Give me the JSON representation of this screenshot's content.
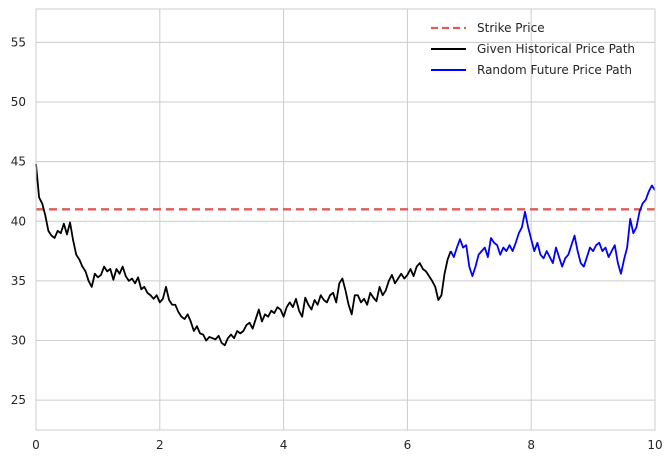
{
  "chart_data": {
    "type": "line",
    "title": "",
    "xlabel": "",
    "ylabel": "",
    "xlim": [
      0,
      10
    ],
    "ylim": [
      22.5,
      57.8
    ],
    "xticks": [
      0,
      2,
      4,
      6,
      8,
      10
    ],
    "xtick_labels": [
      "0",
      "2",
      "4",
      "6",
      "8",
      "10"
    ],
    "yticks": [
      25,
      30,
      35,
      40,
      45,
      50,
      55
    ],
    "ytick_labels": [
      "25",
      "30",
      "35",
      "40",
      "45",
      "50",
      "55"
    ],
    "grid": true,
    "legend_position": "top-right",
    "series": [
      {
        "name": "Strike Price",
        "style": "dashed",
        "color": "#e05a56",
        "x": [
          0,
          10
        ],
        "y": [
          41,
          41
        ]
      },
      {
        "name": "Given Historical Price Path",
        "style": "solid",
        "color": "#000000",
        "x": [
          0,
          0.05,
          0.1,
          0.15,
          0.2,
          0.25,
          0.3,
          0.35,
          0.4,
          0.45,
          0.5,
          0.55,
          0.6,
          0.65,
          0.7,
          0.75,
          0.8,
          0.85,
          0.9,
          0.95,
          1.0,
          1.05,
          1.1,
          1.15,
          1.2,
          1.25,
          1.3,
          1.35,
          1.4,
          1.45,
          1.5,
          1.55,
          1.6,
          1.65,
          1.7,
          1.75,
          1.8,
          1.85,
          1.9,
          1.95,
          2.0,
          2.05,
          2.1,
          2.15,
          2.2,
          2.25,
          2.3,
          2.35,
          2.4,
          2.45,
          2.5,
          2.55,
          2.6,
          2.65,
          2.7,
          2.75,
          2.8,
          2.85,
          2.9,
          2.95,
          3.0,
          3.05,
          3.1,
          3.15,
          3.2,
          3.25,
          3.3,
          3.35,
          3.4,
          3.45,
          3.5,
          3.55,
          3.6,
          3.65,
          3.7,
          3.75,
          3.8,
          3.85,
          3.9,
          3.95,
          4.0,
          4.05,
          4.1,
          4.15,
          4.2,
          4.25,
          4.3,
          4.35,
          4.4,
          4.45,
          4.5,
          4.55,
          4.6,
          4.65,
          4.7,
          4.75,
          4.8,
          4.85,
          4.9,
          4.95,
          5.0,
          5.05,
          5.1,
          5.15,
          5.2,
          5.25,
          5.3,
          5.35,
          5.4,
          5.45,
          5.5,
          5.55,
          5.6,
          5.65,
          5.7,
          5.75,
          5.8,
          5.85,
          5.9,
          5.95,
          6.0,
          6.05,
          6.1,
          6.15,
          6.2,
          6.25,
          6.3,
          6.35,
          6.4,
          6.45,
          6.5,
          6.55,
          6.6,
          6.65,
          6.7
        ],
        "y": [
          44.8,
          42.0,
          41.5,
          40.5,
          39.2,
          38.8,
          38.6,
          39.2,
          39.0,
          39.8,
          38.9,
          39.9,
          38.4,
          37.2,
          36.8,
          36.2,
          35.8,
          35.0,
          34.5,
          35.6,
          35.3,
          35.5,
          36.2,
          35.8,
          36.0,
          35.1,
          36.0,
          35.6,
          36.2,
          35.4,
          35.0,
          35.2,
          34.8,
          35.3,
          34.3,
          34.5,
          34.0,
          33.8,
          33.5,
          33.8,
          33.2,
          33.5,
          34.5,
          33.4,
          33.0,
          33.0,
          32.4,
          32.0,
          31.8,
          32.2,
          31.6,
          30.8,
          31.2,
          30.6,
          30.5,
          30.0,
          30.3,
          30.2,
          30.1,
          30.4,
          29.8,
          29.6,
          30.2,
          30.5,
          30.2,
          30.8,
          30.6,
          30.8,
          31.3,
          31.5,
          31.0,
          31.8,
          32.6,
          31.6,
          32.2,
          32.0,
          32.5,
          32.3,
          32.8,
          32.6,
          32.0,
          32.8,
          33.2,
          32.8,
          33.5,
          32.5,
          32.0,
          33.6,
          33.0,
          32.6,
          33.4,
          33.0,
          33.8,
          33.4,
          33.2,
          33.8,
          34.0,
          33.2,
          34.8,
          35.2,
          34.2,
          33.0,
          32.2,
          33.8,
          33.8,
          33.2,
          33.5,
          33.0,
          34.0,
          33.6,
          33.3,
          34.5,
          33.8,
          34.2,
          35.0,
          35.5,
          34.8,
          35.2,
          35.6,
          35.2,
          35.5,
          36.0,
          35.4,
          36.2,
          36.5,
          36.0,
          35.8,
          35.4,
          35.0,
          34.5,
          33.4,
          33.8,
          35.6,
          36.8,
          37.5
        ]
      },
      {
        "name": "Random Future Price Path",
        "style": "solid",
        "color": "#0000ff",
        "x": [
          6.7,
          6.75,
          6.8,
          6.85,
          6.9,
          6.95,
          7.0,
          7.05,
          7.1,
          7.15,
          7.2,
          7.25,
          7.3,
          7.35,
          7.4,
          7.45,
          7.5,
          7.55,
          7.6,
          7.65,
          7.7,
          7.75,
          7.8,
          7.85,
          7.9,
          7.95,
          8.0,
          8.05,
          8.1,
          8.15,
          8.2,
          8.25,
          8.3,
          8.35,
          8.4,
          8.45,
          8.5,
          8.55,
          8.6,
          8.65,
          8.7,
          8.75,
          8.8,
          8.85,
          8.9,
          8.95,
          9.0,
          9.05,
          9.1,
          9.15,
          9.2,
          9.25,
          9.3,
          9.35,
          9.4,
          9.45,
          9.5,
          9.55,
          9.6,
          9.65,
          9.7,
          9.75,
          9.8,
          9.85,
          9.9,
          9.95,
          10.0
        ],
        "y": [
          37.5,
          37.0,
          37.8,
          38.5,
          37.8,
          38.0,
          36.2,
          35.4,
          36.2,
          37.2,
          37.5,
          37.8,
          37.0,
          38.6,
          38.2,
          38.0,
          37.2,
          37.8,
          37.5,
          38.0,
          37.5,
          38.2,
          39.0,
          39.5,
          40.8,
          39.5,
          38.5,
          37.5,
          38.2,
          37.2,
          36.9,
          37.5,
          37.0,
          36.5,
          37.8,
          37.0,
          36.2,
          36.9,
          37.2,
          38.0,
          38.8,
          37.5,
          36.5,
          36.2,
          37.0,
          37.8,
          37.5,
          38.0,
          38.2,
          37.5,
          37.8,
          37.0,
          37.5,
          38.0,
          36.5,
          35.6,
          36.8,
          37.8,
          40.2,
          39.0,
          39.5,
          40.8,
          41.5,
          41.8,
          42.5,
          43.0,
          42.6
        ]
      }
    ]
  }
}
